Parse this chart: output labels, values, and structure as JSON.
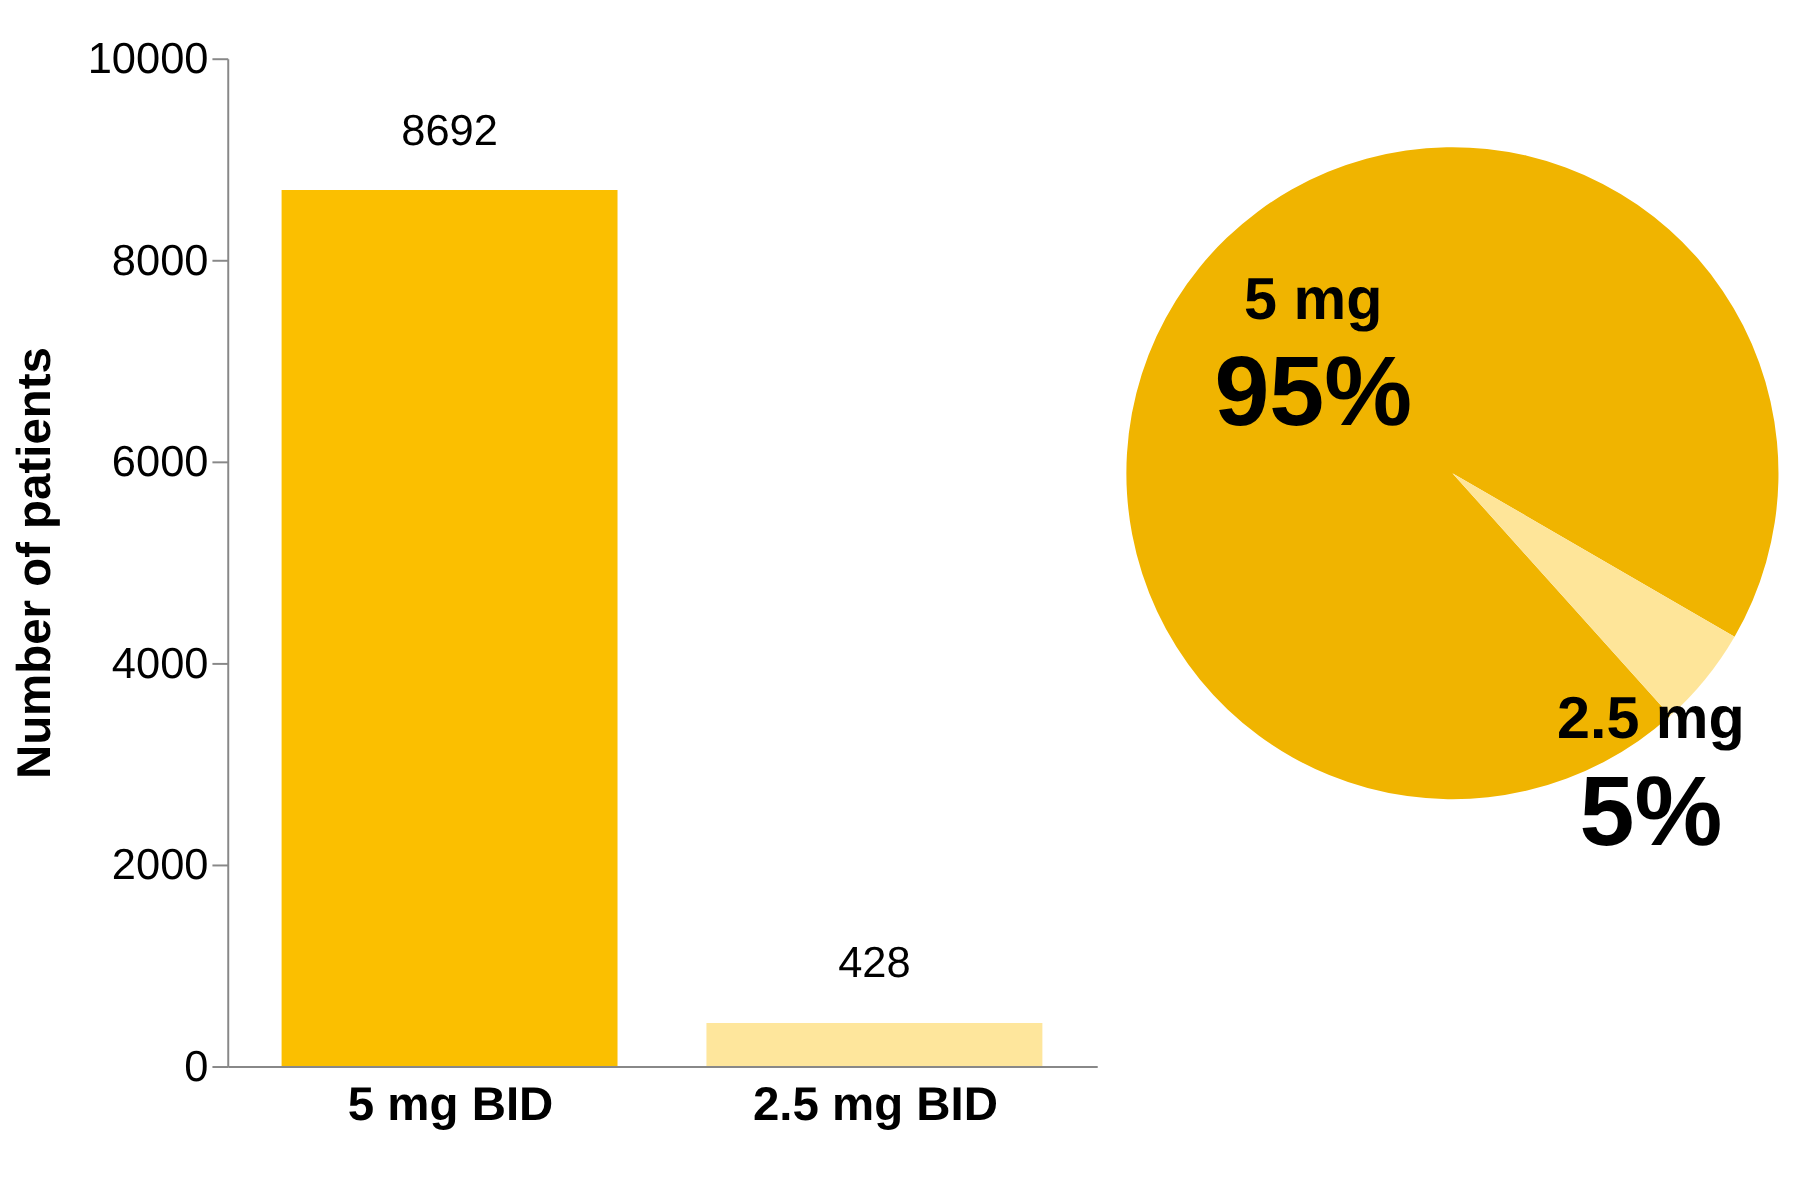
{
  "chart_data": [
    {
      "type": "bar",
      "ylabel": "Number of patients",
      "categories": [
        "5 mg BID",
        "2.5 mg BID"
      ],
      "values": [
        8692,
        428
      ],
      "colors": [
        "#fbbf00",
        "#fee69c"
      ],
      "ylim": [
        0,
        10000
      ],
      "yticks": [
        0,
        2000,
        4000,
        6000,
        8000,
        10000
      ],
      "grid": false,
      "data_labels": true
    },
    {
      "type": "pie",
      "categories": [
        "5 mg",
        "2.5 mg"
      ],
      "values": [
        95,
        5
      ],
      "colors": [
        "#f0b400",
        "#fee599"
      ],
      "value_labels": [
        "95%",
        "5%"
      ]
    }
  ]
}
